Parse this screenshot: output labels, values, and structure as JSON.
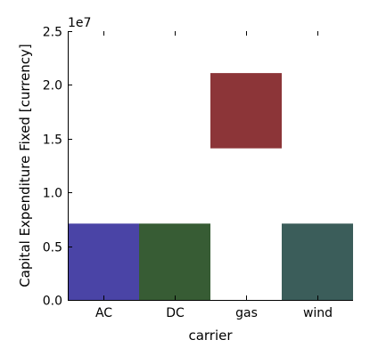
{
  "chart_data": {
    "type": "bar",
    "categories": [
      "AC",
      "DC",
      "gas",
      "wind"
    ],
    "series": [
      {
        "values": [
          [
            0,
            7100000
          ],
          [
            0,
            7100000
          ],
          [
            14100000,
            21100000
          ],
          [
            0,
            7100000
          ]
        ]
      }
    ],
    "colors": [
      "#4a44a6",
      "#375c34",
      "#8c3538",
      "#3b5d5a"
    ],
    "xlabel": "carrier",
    "ylabel": "Capital Expenditure Fixed [currency]",
    "ylim": [
      0,
      25000000
    ],
    "yticks": [
      "0.0",
      "0.5",
      "1.0",
      "1.5",
      "2.0",
      "2.5"
    ],
    "ytick_values": [
      0,
      5000000,
      10000000,
      15000000,
      20000000,
      25000000
    ],
    "offset_text": "1e7",
    "grid": false,
    "legend": "none"
  }
}
